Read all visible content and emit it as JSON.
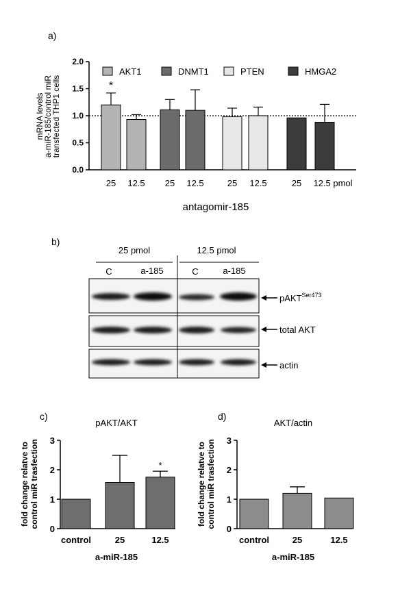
{
  "panels": {
    "a": "a)",
    "b": "b)",
    "c": "c)",
    "d": "d)"
  },
  "chart_data": [
    {
      "type": "bar",
      "panel": "a",
      "ylabel_lines": [
        "mRNA levels",
        "a-miR-185/control miR",
        "transfected THP1 cells"
      ],
      "xlabel": "antagomir-185",
      "ylim": [
        0,
        2.0
      ],
      "yticks": [
        "0.0",
        "0.5",
        "1.0",
        "1.5",
        "2.0"
      ],
      "reference_line": 1.0,
      "legend": [
        {
          "name": "AKT1",
          "color": "#b4b4b4"
        },
        {
          "name": "DNMT1",
          "color": "#6b6b6b"
        },
        {
          "name": "PTEN",
          "color": "#e8e8e8"
        },
        {
          "name": "HMGA2",
          "color": "#3c3c3c"
        }
      ],
      "bars": [
        {
          "group": "AKT1",
          "label": "25",
          "value": 1.2,
          "error": 0.22,
          "star": "*"
        },
        {
          "group": "AKT1",
          "label": "12.5",
          "value": 0.93,
          "error": 0.09,
          "star": ""
        },
        {
          "group": "DNMT1",
          "label": "25",
          "value": 1.11,
          "error": 0.19,
          "star": ""
        },
        {
          "group": "DNMT1",
          "label": "12.5",
          "value": 1.1,
          "error": 0.38,
          "star": ""
        },
        {
          "group": "PTEN",
          "label": "25",
          "value": 0.98,
          "error": 0.16,
          "star": ""
        },
        {
          "group": "PTEN",
          "label": "12.5",
          "value": 1.0,
          "error": 0.16,
          "star": ""
        },
        {
          "group": "HMGA2",
          "label": "25",
          "value": 0.96,
          "error": 0.0,
          "star": ""
        },
        {
          "group": "HMGA2",
          "label": "12.5 pmol",
          "value": 0.88,
          "error": 0.33,
          "star": ""
        }
      ]
    },
    {
      "type": "bar",
      "panel": "c",
      "title": "pAKT/AKT",
      "ylabel_lines": [
        "fold change relatve to",
        "control miR trasfection"
      ],
      "xlabel": "a-miR-185",
      "ylim": [
        0,
        3
      ],
      "yticks": [
        "0",
        "1",
        "2",
        "3"
      ],
      "color": "#6e6e6e",
      "bars": [
        {
          "label": "control",
          "value": 1.0,
          "error": 0.0,
          "star": ""
        },
        {
          "label": "25",
          "value": 1.57,
          "error": 0.92,
          "star": ""
        },
        {
          "label": "12.5",
          "value": 1.75,
          "error": 0.2,
          "star": "*"
        }
      ]
    },
    {
      "type": "bar",
      "panel": "d",
      "title": "AKT/actin",
      "ylabel_lines": [
        "fold change relatve to",
        "control miR trasfection"
      ],
      "xlabel": "a-miR-185",
      "ylim": [
        0,
        3
      ],
      "yticks": [
        "0",
        "1",
        "2",
        "3"
      ],
      "color": "#8c8c8c",
      "bars": [
        {
          "label": "control",
          "value": 1.0,
          "error": 0.0,
          "star": ""
        },
        {
          "label": "25",
          "value": 1.2,
          "error": 0.22,
          "star": ""
        },
        {
          "label": "12.5",
          "value": 1.04,
          "error": 0.0,
          "star": ""
        }
      ]
    }
  ],
  "blot": {
    "conditions": [
      "25 pmol",
      "12.5 pmol"
    ],
    "lanes": [
      "C",
      "a-185",
      "C",
      "a-185"
    ],
    "rows": [
      {
        "prefix": "pAKT",
        "sup": "Ser473"
      },
      {
        "prefix": "total AKT",
        "sup": ""
      },
      {
        "prefix": "actin",
        "sup": ""
      }
    ]
  }
}
